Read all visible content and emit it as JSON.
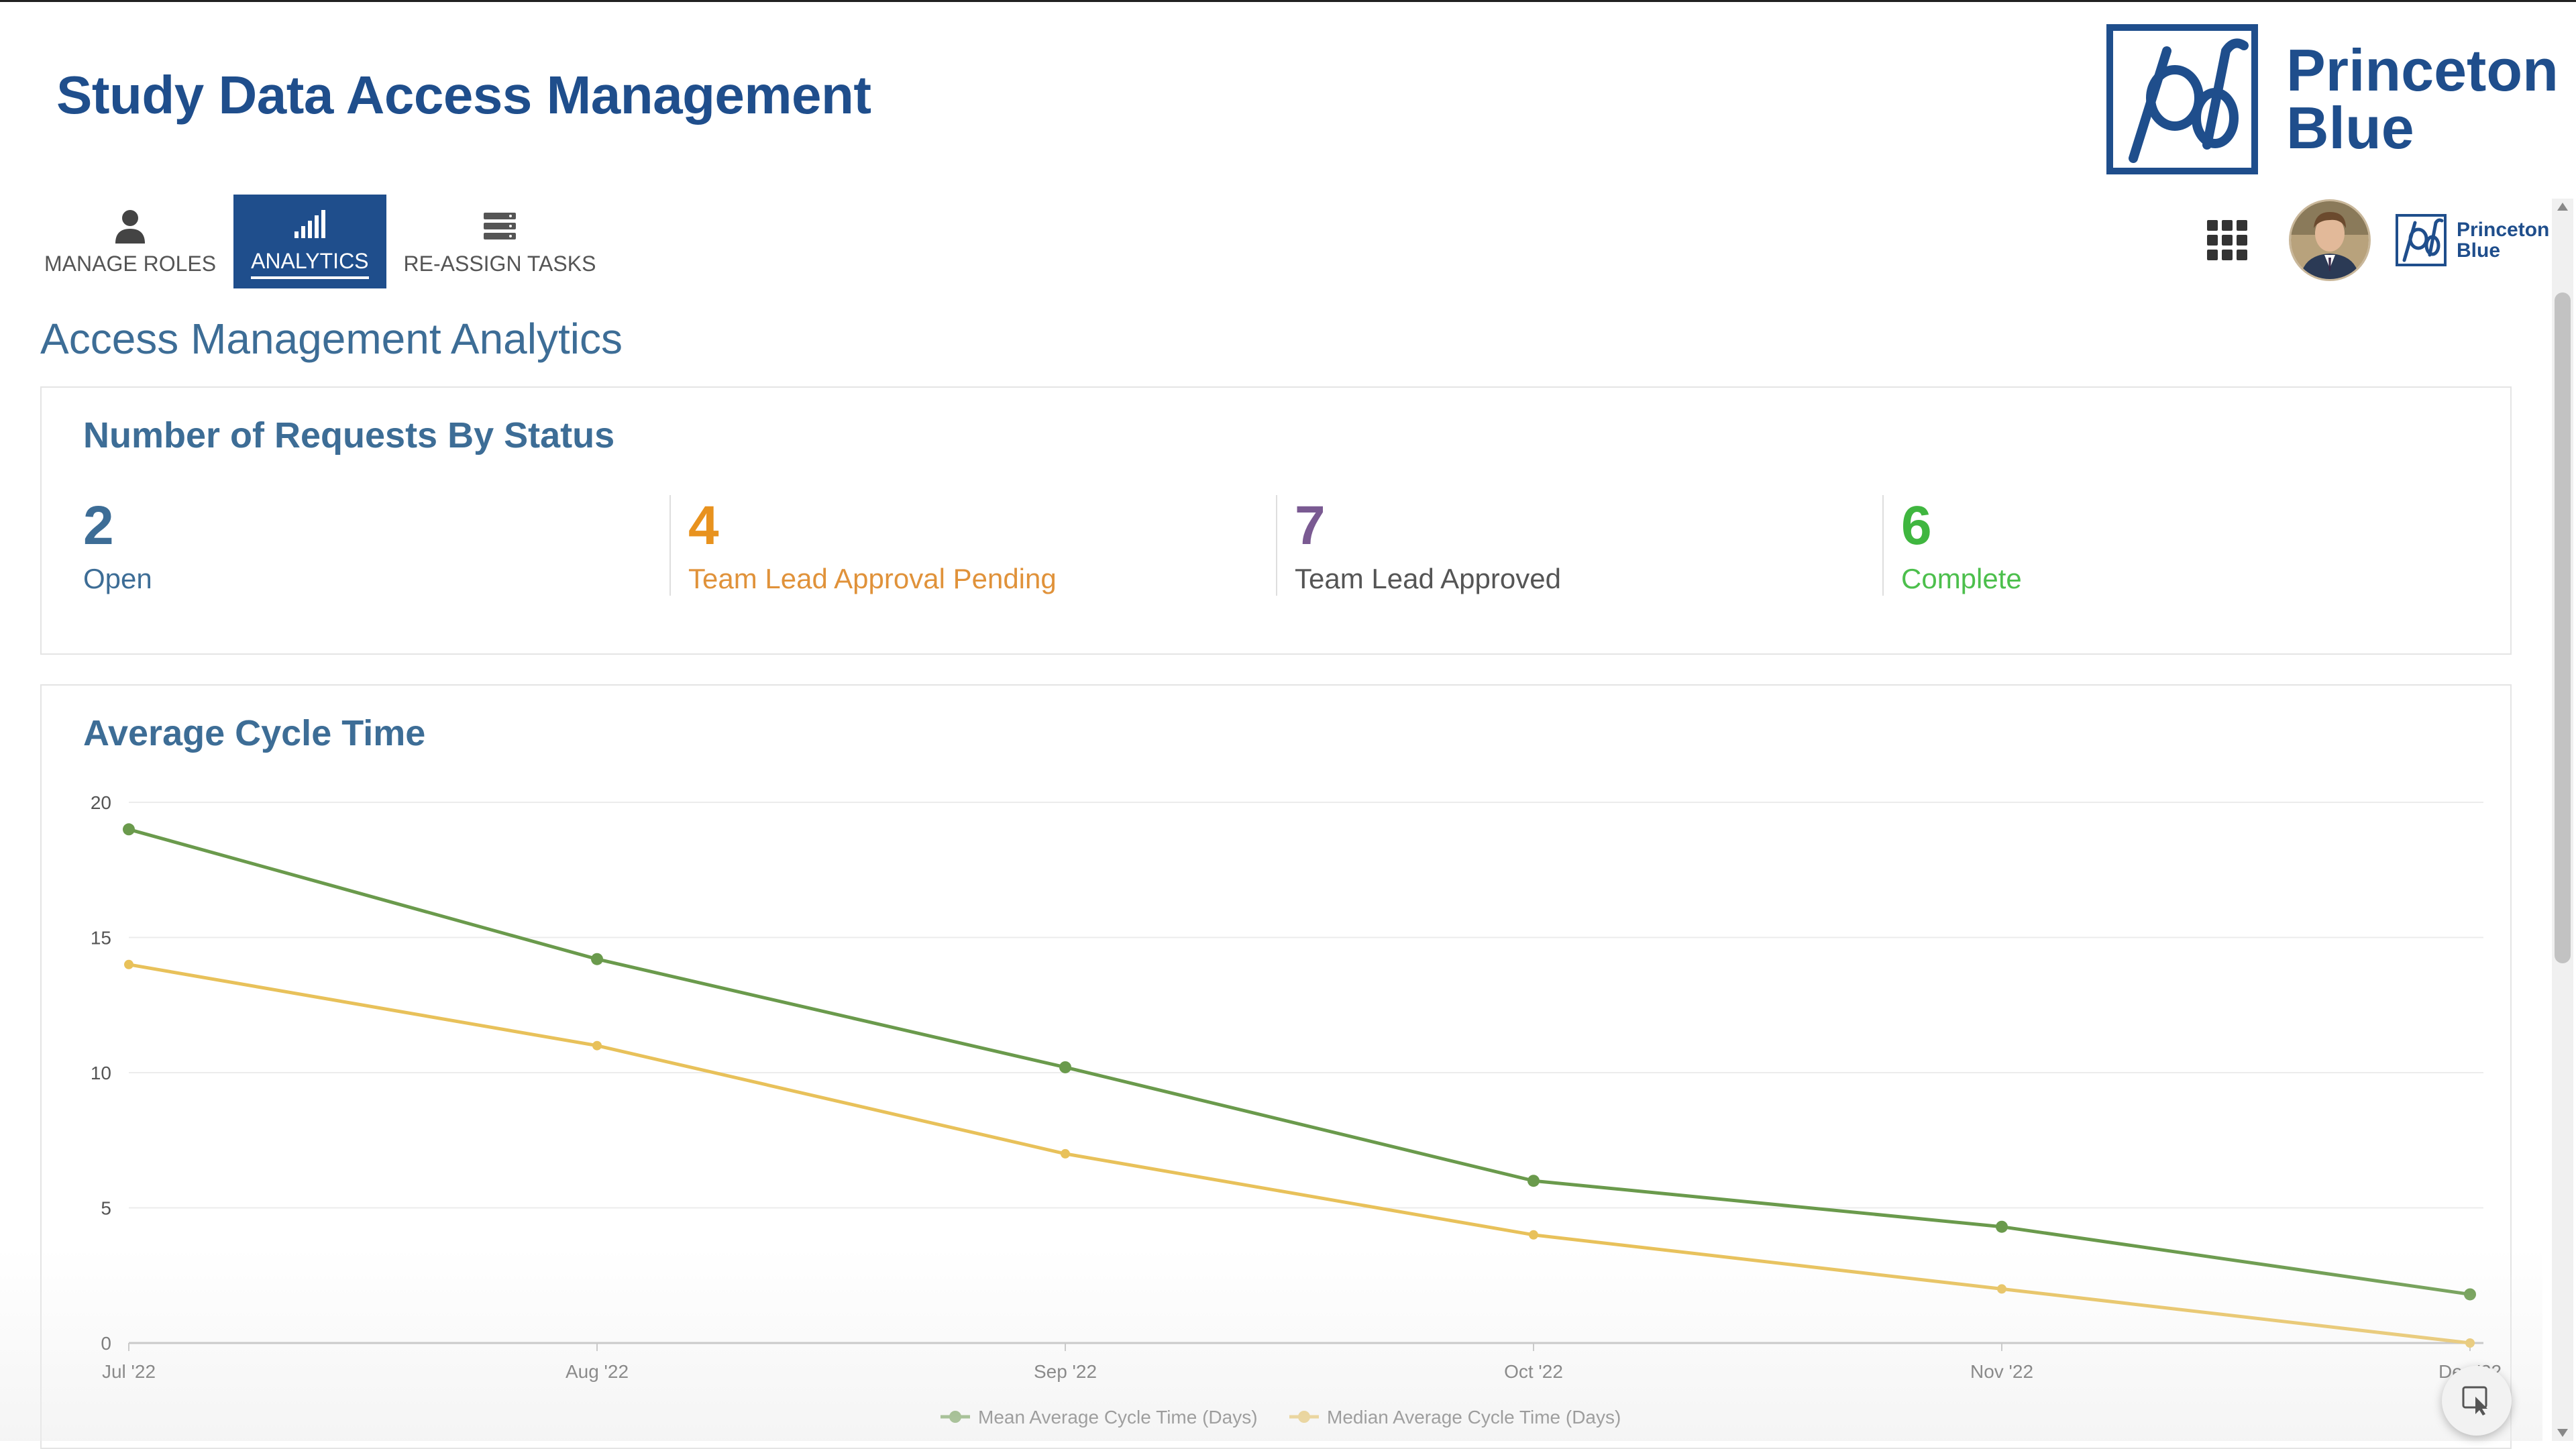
{
  "header": {
    "app_title": "Study Data Access Management",
    "brand_name_line1": "Princeton",
    "brand_name_line2": "Blue",
    "brand_color": "#1f4e8c"
  },
  "tabs": [
    {
      "label": "MANAGE ROLES",
      "icon": "person-icon",
      "active": false
    },
    {
      "label": "ANALYTICS",
      "icon": "bar-chart-icon",
      "active": true
    },
    {
      "label": "RE-ASSIGN TASKS",
      "icon": "stack-icon",
      "active": false
    }
  ],
  "user_area": {
    "apps_icon": "app-grid-icon",
    "avatar": "user-avatar",
    "mini_brand_line1": "Princeton",
    "mini_brand_line2": "Blue"
  },
  "page_heading": "Access Management Analytics",
  "status_card": {
    "title": "Number of Requests By Status",
    "stats": [
      {
        "value": "2",
        "label": "Open",
        "num_color": "#3d6d96",
        "label_color": "#3d6d96"
      },
      {
        "value": "4",
        "label": "Team Lead Approval Pending",
        "num_color": "#e8921e",
        "label_color": "#e0923a"
      },
      {
        "value": "7",
        "label": "Team Lead Approved",
        "num_color": "#7a5a92",
        "label_color": "#555555"
      },
      {
        "value": "6",
        "label": "Complete",
        "num_color": "#3fb63f",
        "label_color": "#4cbf4c"
      }
    ]
  },
  "cycle_card": {
    "title": "Average Cycle Time"
  },
  "chart_data": {
    "type": "line",
    "title": "Average Cycle Time",
    "xlabel": "",
    "ylabel": "",
    "categories": [
      "Jul '22",
      "Aug '22",
      "Sep '22",
      "Oct '22",
      "Nov '22",
      "Dec '22"
    ],
    "ylim": [
      0,
      20
    ],
    "yticks": [
      0,
      5,
      10,
      15,
      20
    ],
    "grid": true,
    "legend_position": "bottom-center",
    "series": [
      {
        "name": "Mean Average Cycle Time (Days)",
        "color": "#6a9a4c",
        "values": [
          19,
          14.2,
          10.2,
          6,
          4.3,
          1.8
        ]
      },
      {
        "name": "Median Average Cycle Time (Days)",
        "color": "#e8c15a",
        "values": [
          14,
          11,
          7,
          4,
          2,
          0
        ]
      }
    ]
  }
}
